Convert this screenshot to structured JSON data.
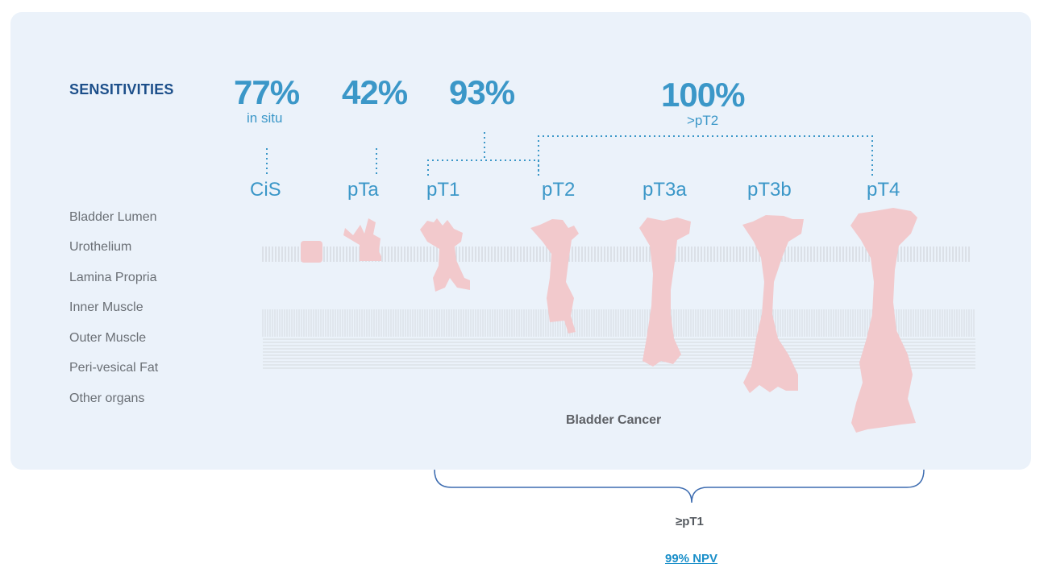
{
  "sensitivities": {
    "title": "SENSITIVITIES",
    "items": [
      {
        "value": "77%",
        "sub": "in situ"
      },
      {
        "value": "42%"
      },
      {
        "value": "93%"
      },
      {
        "value": "100%",
        "sub": ">pT2"
      }
    ]
  },
  "stages": [
    "CiS",
    "pTa",
    "pT1",
    "pT2",
    "pT3a",
    "pT3b",
    "pT4"
  ],
  "layers": [
    "Bladder Lumen",
    "Urothelium",
    "Lamina Propria",
    "Inner Muscle",
    "Outer Muscle",
    "Peri-vesical Fat",
    "Other organs"
  ],
  "diagram_label": "Bladder Cancer",
  "bracket_label": "≥pT1",
  "npv_link": "99% NPV",
  "colors": {
    "panel_bg": "#ebf2fa",
    "accent_blue": "#3b97c8",
    "title_navy": "#1c4f8a",
    "tumor_pink": "#f2c9cc",
    "bracket_blue": "#3d6cb0",
    "link_blue": "#1a8fc9"
  }
}
